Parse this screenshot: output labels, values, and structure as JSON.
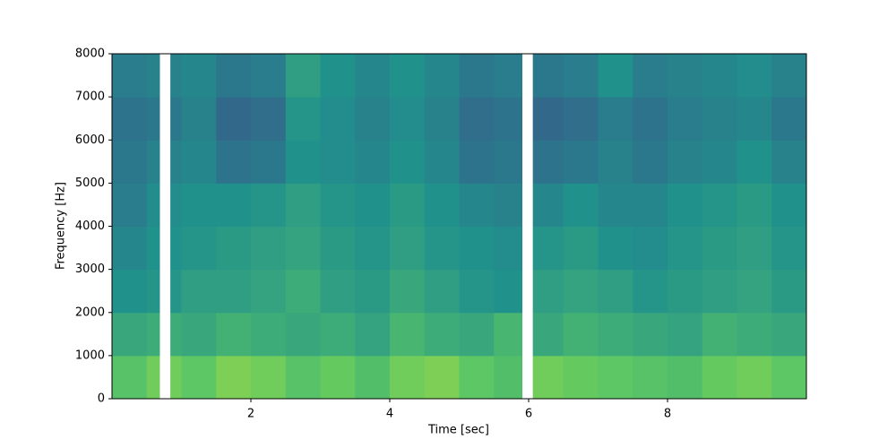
{
  "chart_data": {
    "type": "spectrogram",
    "xlabel": "Time [sec]",
    "ylabel": "Frequency [Hz]",
    "xlim": [
      0,
      10
    ],
    "xticks": [
      2,
      4,
      6,
      8
    ],
    "ylim": [
      0,
      8000
    ],
    "yticks": [
      0,
      1000,
      2000,
      3000,
      4000,
      5000,
      6000,
      7000,
      8000
    ],
    "colormap": "viridis",
    "zlim": [
      0,
      1
    ],
    "x": [
      0.25,
      0.75,
      1.25,
      1.75,
      2.25,
      2.75,
      3.25,
      3.75,
      4.25,
      4.75,
      5.25,
      5.75,
      6.25,
      6.75,
      7.25,
      7.75,
      8.25,
      8.75,
      9.25,
      9.75
    ],
    "y": [
      500,
      1500,
      2500,
      3500,
      4500,
      5500,
      6500,
      7500
    ],
    "values": [
      [
        0.72,
        0.78,
        0.74,
        0.8,
        0.78,
        0.72,
        0.76,
        0.7,
        0.78,
        0.8,
        0.74,
        0.7,
        0.78,
        0.76,
        0.74,
        0.72,
        0.7,
        0.76,
        0.78,
        0.74
      ],
      [
        0.6,
        0.62,
        0.6,
        0.64,
        0.62,
        0.6,
        0.62,
        0.58,
        0.66,
        0.62,
        0.6,
        0.66,
        0.6,
        0.64,
        0.62,
        0.6,
        0.58,
        0.64,
        0.62,
        0.6
      ],
      [
        0.5,
        0.52,
        0.56,
        0.56,
        0.58,
        0.62,
        0.56,
        0.54,
        0.6,
        0.56,
        0.52,
        0.5,
        0.56,
        0.58,
        0.56,
        0.52,
        0.54,
        0.56,
        0.58,
        0.54
      ],
      [
        0.46,
        0.5,
        0.52,
        0.54,
        0.56,
        0.58,
        0.54,
        0.52,
        0.56,
        0.52,
        0.5,
        0.48,
        0.52,
        0.54,
        0.5,
        0.48,
        0.52,
        0.54,
        0.56,
        0.52
      ],
      [
        0.42,
        0.48,
        0.5,
        0.5,
        0.52,
        0.56,
        0.52,
        0.5,
        0.54,
        0.5,
        0.46,
        0.44,
        0.46,
        0.5,
        0.46,
        0.46,
        0.5,
        0.52,
        0.54,
        0.5
      ],
      [
        0.4,
        0.44,
        0.46,
        0.38,
        0.4,
        0.5,
        0.48,
        0.46,
        0.5,
        0.46,
        0.38,
        0.4,
        0.38,
        0.4,
        0.44,
        0.4,
        0.44,
        0.46,
        0.5,
        0.44
      ],
      [
        0.38,
        0.4,
        0.44,
        0.34,
        0.36,
        0.52,
        0.48,
        0.44,
        0.48,
        0.44,
        0.36,
        0.38,
        0.34,
        0.36,
        0.42,
        0.38,
        0.42,
        0.44,
        0.46,
        0.4
      ],
      [
        0.42,
        0.44,
        0.46,
        0.4,
        0.42,
        0.56,
        0.5,
        0.46,
        0.5,
        0.46,
        0.4,
        0.42,
        0.4,
        0.42,
        0.5,
        0.42,
        0.44,
        0.46,
        0.48,
        0.44
      ]
    ],
    "gaps": [
      [
        0.69,
        0.84
      ],
      [
        5.91,
        6.06
      ]
    ]
  }
}
